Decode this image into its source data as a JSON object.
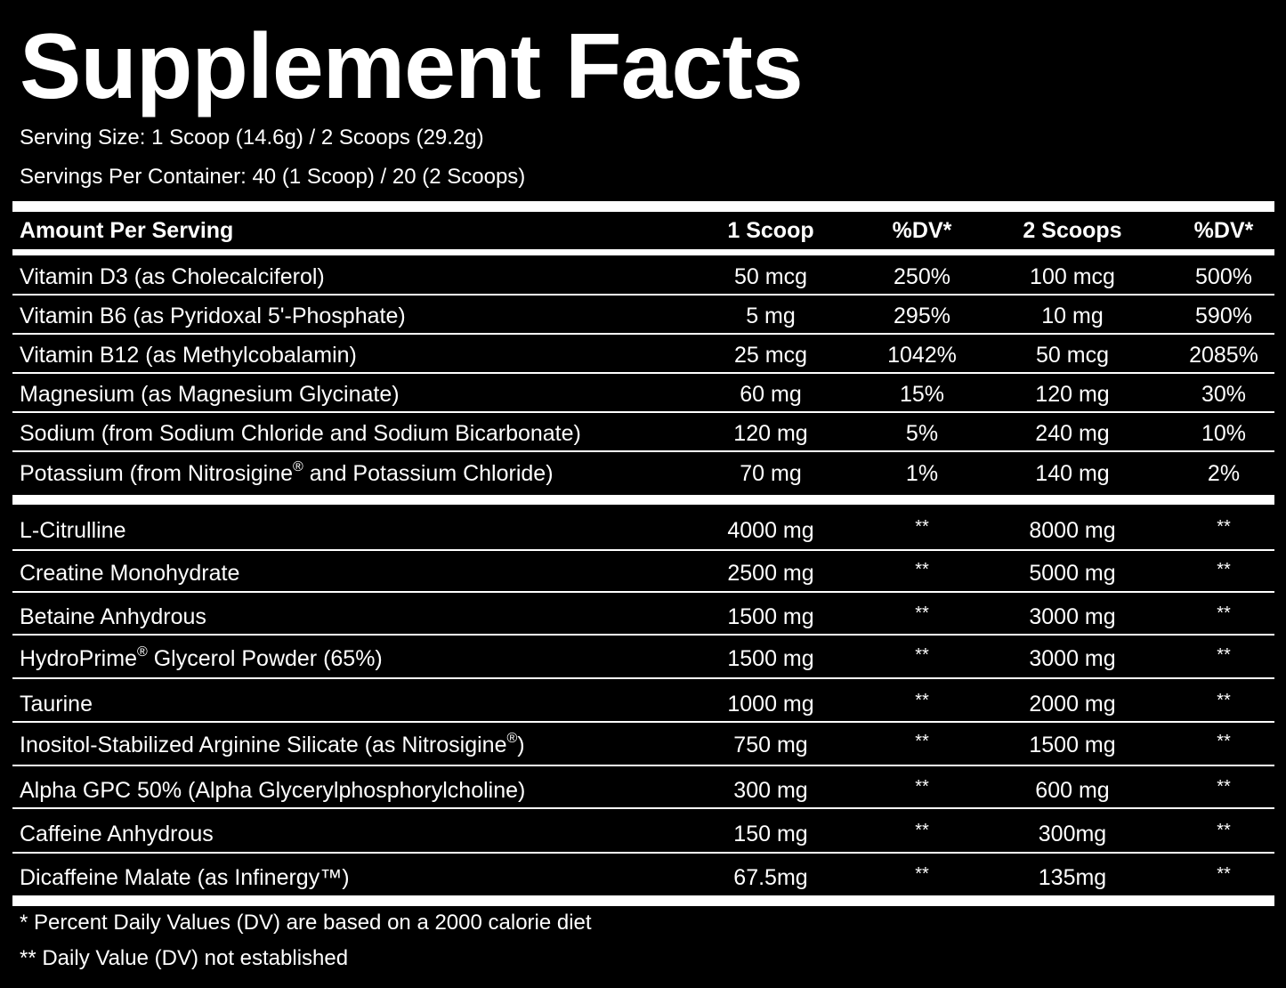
{
  "title": "Supplement Facts",
  "serving_size": "Serving Size: 1 Scoop (14.6g) / 2 Scoops (29.2g)",
  "servings_per_container": "Servings Per Container: 40 (1 Scoop) / 20 (2 Scoops)",
  "header": {
    "amount": "Amount Per Serving",
    "one_scoop": "1 Scoop",
    "dv1": "%DV*",
    "two_scoops": "2 Scoops",
    "dv2": "%DV*"
  },
  "vitamins": [
    {
      "name": "Vitamin D3 (as Cholecalciferol)",
      "one": "50 mcg",
      "dv1": "250%",
      "two": "100 mcg",
      "dv2": "500%"
    },
    {
      "name": "Vitamin B6 (as Pyridoxal 5'-Phosphate)",
      "one": "5 mg",
      "dv1": "295%",
      "two": "10 mg",
      "dv2": "590%"
    },
    {
      "name": "Vitamin B12 (as Methylcobalamin)",
      "one": "25 mcg",
      "dv1": "1042%",
      "two": "50 mcg",
      "dv2": "2085%"
    },
    {
      "name": "Magnesium (as Magnesium Glycinate)",
      "one": "60 mg",
      "dv1": "15%",
      "two": "120 mg",
      "dv2": "30%"
    },
    {
      "name": "Sodium (from Sodium Chloride and Sodium Bicarbonate)",
      "one": "120 mg",
      "dv1": "5%",
      "two": "240 mg",
      "dv2": "10%"
    },
    {
      "name_a": "Potassium (from Nitrosigine",
      "reg": "®",
      "name_b": " and Potassium Chloride)",
      "one": "70 mg",
      "dv1": "1%",
      "two": "140 mg",
      "dv2": "2%"
    }
  ],
  "ingredients": [
    {
      "name": "L-Citrulline",
      "one": "4000 mg",
      "dv1": "**",
      "two": "8000 mg",
      "dv2": "**"
    },
    {
      "name": "Creatine Monohydrate",
      "one": "2500 mg",
      "dv1": "**",
      "two": "5000 mg",
      "dv2": "**"
    },
    {
      "name": "Betaine Anhydrous",
      "one": "1500 mg",
      "dv1": "**",
      "two": "3000 mg",
      "dv2": "**"
    },
    {
      "name_a": "HydroPrime",
      "reg": "®",
      "name_b": " Glycerol Powder (65%)",
      "one": "1500 mg",
      "dv1": "**",
      "two": "3000 mg",
      "dv2": "**"
    },
    {
      "name": "Taurine",
      "one": "1000 mg",
      "dv1": "**",
      "two": "2000 mg",
      "dv2": "**"
    },
    {
      "name_a": "Inositol-Stabilized Arginine Silicate (as Nitrosigine",
      "reg": "®",
      "name_b": ")",
      "one": "750 mg",
      "dv1": "**",
      "two": "1500 mg",
      "dv2": "**"
    },
    {
      "name": "Alpha GPC 50% (Alpha Glycerylphosphorylcholine)",
      "one": "300 mg",
      "dv1": "**",
      "two": "600 mg",
      "dv2": "**"
    },
    {
      "name": "Caffeine Anhydrous",
      "one": "150 mg",
      "dv1": "**",
      "two": "300mg",
      "dv2": "**"
    },
    {
      "name": "Dicaffeine Malate (as Infinergy™)",
      "one": "67.5mg",
      "dv1": "**",
      "two": "135mg",
      "dv2": "**"
    }
  ],
  "footnotes": {
    "dv": "* Percent Daily Values (DV) are based on a 2000 calorie diet",
    "not_established": "** Daily Value (DV) not established"
  }
}
